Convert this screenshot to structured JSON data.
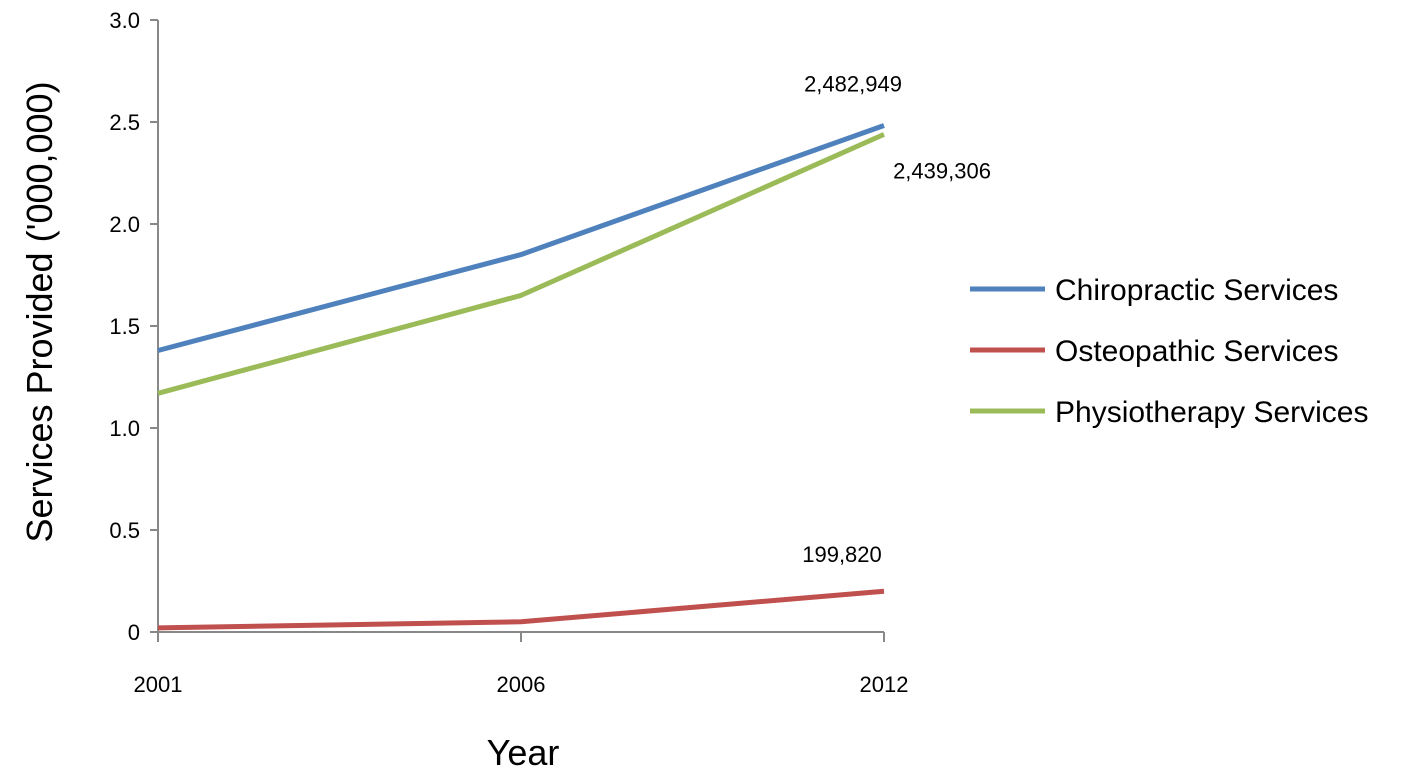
{
  "chart_data": {
    "type": "line",
    "title": "",
    "xlabel": "Year",
    "ylabel": "Services Provided ('000,000)",
    "x": [
      "2001",
      "2006",
      "2012"
    ],
    "ylim": [
      0,
      3.0
    ],
    "yticks": [
      0,
      0.5,
      1.0,
      1.5,
      2.0,
      2.5,
      3.0
    ],
    "ytick_labels": [
      "0",
      "0.5",
      "1.0",
      "1.5",
      "2.0",
      "2.5",
      "3.0"
    ],
    "grid": false,
    "legend_position": "right",
    "series": [
      {
        "name": "Chiropractic Services",
        "color": "#4f81bd",
        "values": [
          1.38,
          1.85,
          2.482949
        ],
        "end_label": "2,482,949"
      },
      {
        "name": "Osteopathic Services",
        "color": "#c0504d",
        "values": [
          0.02,
          0.05,
          0.19982
        ],
        "end_label": "199,820"
      },
      {
        "name": "Physiotherapy Services",
        "color": "#9bbb59",
        "values": [
          1.17,
          1.65,
          2.439306
        ],
        "end_label": "2,439,306"
      }
    ]
  }
}
